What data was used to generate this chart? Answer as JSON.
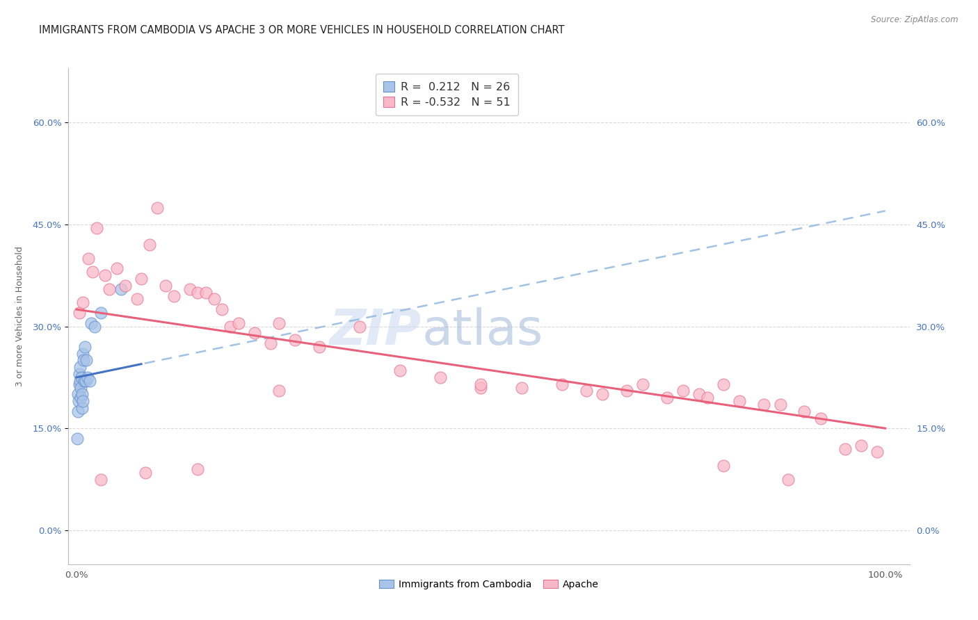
{
  "title": "IMMIGRANTS FROM CAMBODIA VS APACHE 3 OR MORE VEHICLES IN HOUSEHOLD CORRELATION CHART",
  "source": "Source: ZipAtlas.com",
  "ylabel": "3 or more Vehicles in Household",
  "watermark_zip": "ZIP",
  "watermark_atlas": "atlas",
  "legend_val1": "0.212",
  "legend_n1": "26",
  "legend_val2": "-0.532",
  "legend_n2": "51",
  "color_cambodia_fill": "#a8c4e8",
  "color_cambodia_edge": "#6090d0",
  "color_apache_fill": "#f8b8c8",
  "color_apache_edge": "#e87090",
  "color_cambodia_line": "#4472c4",
  "color_apache_line": "#e8607a",
  "color_dashed": "#90b8e0",
  "ytick_labels": [
    "0.0%",
    "15.0%",
    "30.0%",
    "45.0%",
    "60.0%"
  ],
  "ytick_values": [
    0.0,
    15.0,
    30.0,
    45.0,
    60.0
  ],
  "ylim": [
    -5.0,
    68.0
  ],
  "xlim": [
    -1.0,
    103.0
  ],
  "background_color": "#ffffff",
  "grid_color": "#d0d0d0",
  "title_fontsize": 10.5,
  "axis_label_fontsize": 9,
  "cambodia_x": [
    0.1,
    0.15,
    0.2,
    0.25,
    0.3,
    0.35,
    0.4,
    0.45,
    0.5,
    0.55,
    0.6,
    0.65,
    0.7,
    0.75,
    0.8,
    0.85,
    0.9,
    1.0,
    1.1,
    1.2,
    1.4,
    1.6,
    1.8,
    2.2,
    3.0,
    5.5
  ],
  "cambodia_y": [
    13.5,
    17.5,
    20.0,
    19.0,
    21.5,
    23.0,
    22.0,
    24.0,
    21.0,
    19.5,
    22.5,
    20.0,
    18.0,
    19.0,
    26.0,
    25.0,
    22.0,
    27.0,
    22.0,
    25.0,
    22.5,
    22.0,
    30.5,
    30.0,
    32.0,
    35.5
  ],
  "apache_x": [
    0.3,
    0.8,
    1.5,
    2.0,
    2.5,
    3.5,
    4.0,
    5.0,
    6.0,
    7.5,
    8.0,
    9.0,
    10.0,
    11.0,
    12.0,
    14.0,
    15.0,
    16.0,
    17.0,
    18.0,
    19.0,
    20.0,
    22.0,
    24.0,
    25.0,
    27.0,
    30.0,
    35.0,
    40.0,
    45.0,
    50.0,
    55.0,
    60.0,
    63.0,
    65.0,
    68.0,
    70.0,
    73.0,
    75.0,
    77.0,
    78.0,
    80.0,
    82.0,
    85.0,
    87.0,
    88.0,
    90.0,
    92.0,
    95.0,
    97.0,
    99.0
  ],
  "apache_y": [
    32.0,
    33.5,
    40.0,
    38.0,
    44.5,
    37.5,
    35.5,
    38.5,
    36.0,
    34.0,
    37.0,
    42.0,
    47.5,
    36.0,
    34.5,
    35.5,
    35.0,
    35.0,
    34.0,
    32.5,
    30.0,
    30.5,
    29.0,
    27.5,
    30.5,
    28.0,
    27.0,
    30.0,
    23.5,
    22.5,
    21.0,
    21.0,
    21.5,
    20.5,
    20.0,
    20.5,
    21.5,
    19.5,
    20.5,
    20.0,
    19.5,
    21.5,
    19.0,
    18.5,
    18.5,
    7.5,
    17.5,
    16.5,
    12.0,
    12.5,
    11.5
  ],
  "apache_outliers_x": [
    3.0,
    8.5,
    15.0,
    25.0,
    50.0,
    80.0
  ],
  "apache_outliers_y": [
    7.5,
    8.5,
    9.0,
    20.5,
    21.5,
    9.5
  ],
  "camb_line_x0": 0.0,
  "camb_line_y0": 22.5,
  "camb_line_x1": 100.0,
  "camb_line_y1": 47.0,
  "apache_line_x0": 0.0,
  "apache_line_y0": 32.5,
  "apache_line_x1": 100.0,
  "apache_line_y1": 15.0
}
